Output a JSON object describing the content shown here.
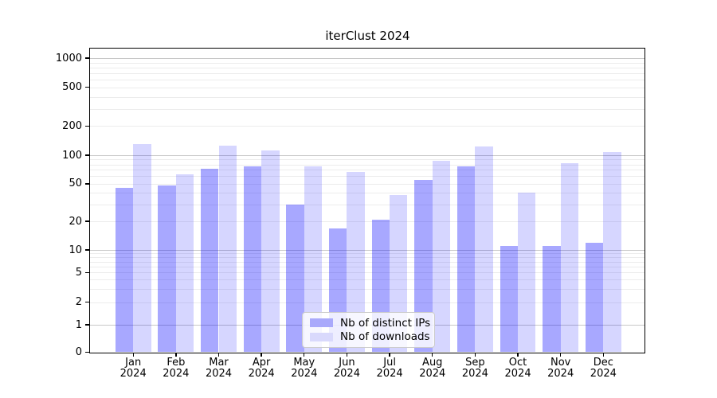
{
  "chart_data": {
    "type": "bar",
    "title": "iterClust 2024",
    "xlabel": "",
    "ylabel": "",
    "yscale": "symlog",
    "ylim": [
      0,
      1250
    ],
    "yticks": [
      0,
      1,
      2,
      5,
      10,
      20,
      50,
      100,
      200,
      500,
      1000
    ],
    "grid": {
      "major": [
        1,
        10,
        100,
        1000
      ],
      "minor": [
        2,
        3,
        4,
        5,
        6,
        7,
        8,
        9,
        20,
        30,
        40,
        50,
        60,
        70,
        80,
        90,
        200,
        300,
        400,
        500,
        600,
        700,
        800,
        900
      ]
    },
    "categories": [
      {
        "month": "Jan",
        "year": "2024"
      },
      {
        "month": "Feb",
        "year": "2024"
      },
      {
        "month": "Mar",
        "year": "2024"
      },
      {
        "month": "Apr",
        "year": "2024"
      },
      {
        "month": "May",
        "year": "2024"
      },
      {
        "month": "Jun",
        "year": "2024"
      },
      {
        "month": "Jul",
        "year": "2024"
      },
      {
        "month": "Aug",
        "year": "2024"
      },
      {
        "month": "Sep",
        "year": "2024"
      },
      {
        "month": "Oct",
        "year": "2024"
      },
      {
        "month": "Nov",
        "year": "2024"
      },
      {
        "month": "Dec",
        "year": "2024"
      }
    ],
    "series": [
      {
        "name": "Nb of distinct IPs",
        "fill": "rgba(0,0,255,0.34)",
        "legend_color": "#a9a9fb",
        "values": [
          45,
          48,
          72,
          76,
          30,
          17,
          21,
          55,
          77,
          11,
          11,
          12
        ]
      },
      {
        "name": "Nb of downloads",
        "fill": "rgba(0,0,255,0.16)",
        "legend_color": "#d9d9fc",
        "values": [
          130,
          63,
          125,
          112,
          76,
          67,
          38,
          88,
          122,
          40,
          82,
          107
        ]
      }
    ],
    "legend_position": "lower center",
    "colors": {
      "major_grid": "#c8c8c8",
      "minor_grid": "#ececec",
      "axis": "#000000",
      "background": "#ffffff"
    }
  }
}
